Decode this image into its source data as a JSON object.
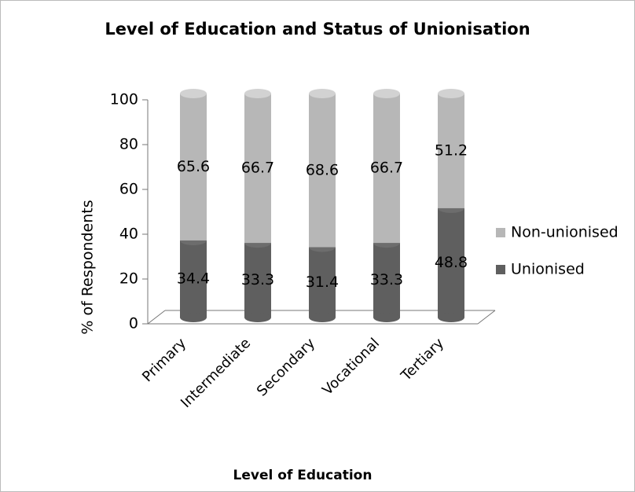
{
  "chart_data": {
    "type": "bar",
    "stacked": true,
    "title": "Level of Education and Status of Unionisation",
    "x_label": "Level of Education",
    "y_label": "% of Respondents",
    "categories": [
      "Primary",
      "Intermediate",
      "Secondary",
      "Vocational",
      "Tertiary"
    ],
    "series": [
      {
        "name": "Unionised",
        "color": "#5f5f5f",
        "values": [
          34.4,
          33.3,
          31.4,
          33.3,
          48.8
        ]
      },
      {
        "name": "Non-unionised",
        "color": "#b7b7b7",
        "values": [
          65.6,
          66.7,
          68.6,
          66.7,
          51.2
        ]
      }
    ],
    "ylim": [
      0,
      100
    ],
    "yticks": [
      0,
      20,
      40,
      60,
      80,
      100
    ],
    "legend": "right"
  }
}
